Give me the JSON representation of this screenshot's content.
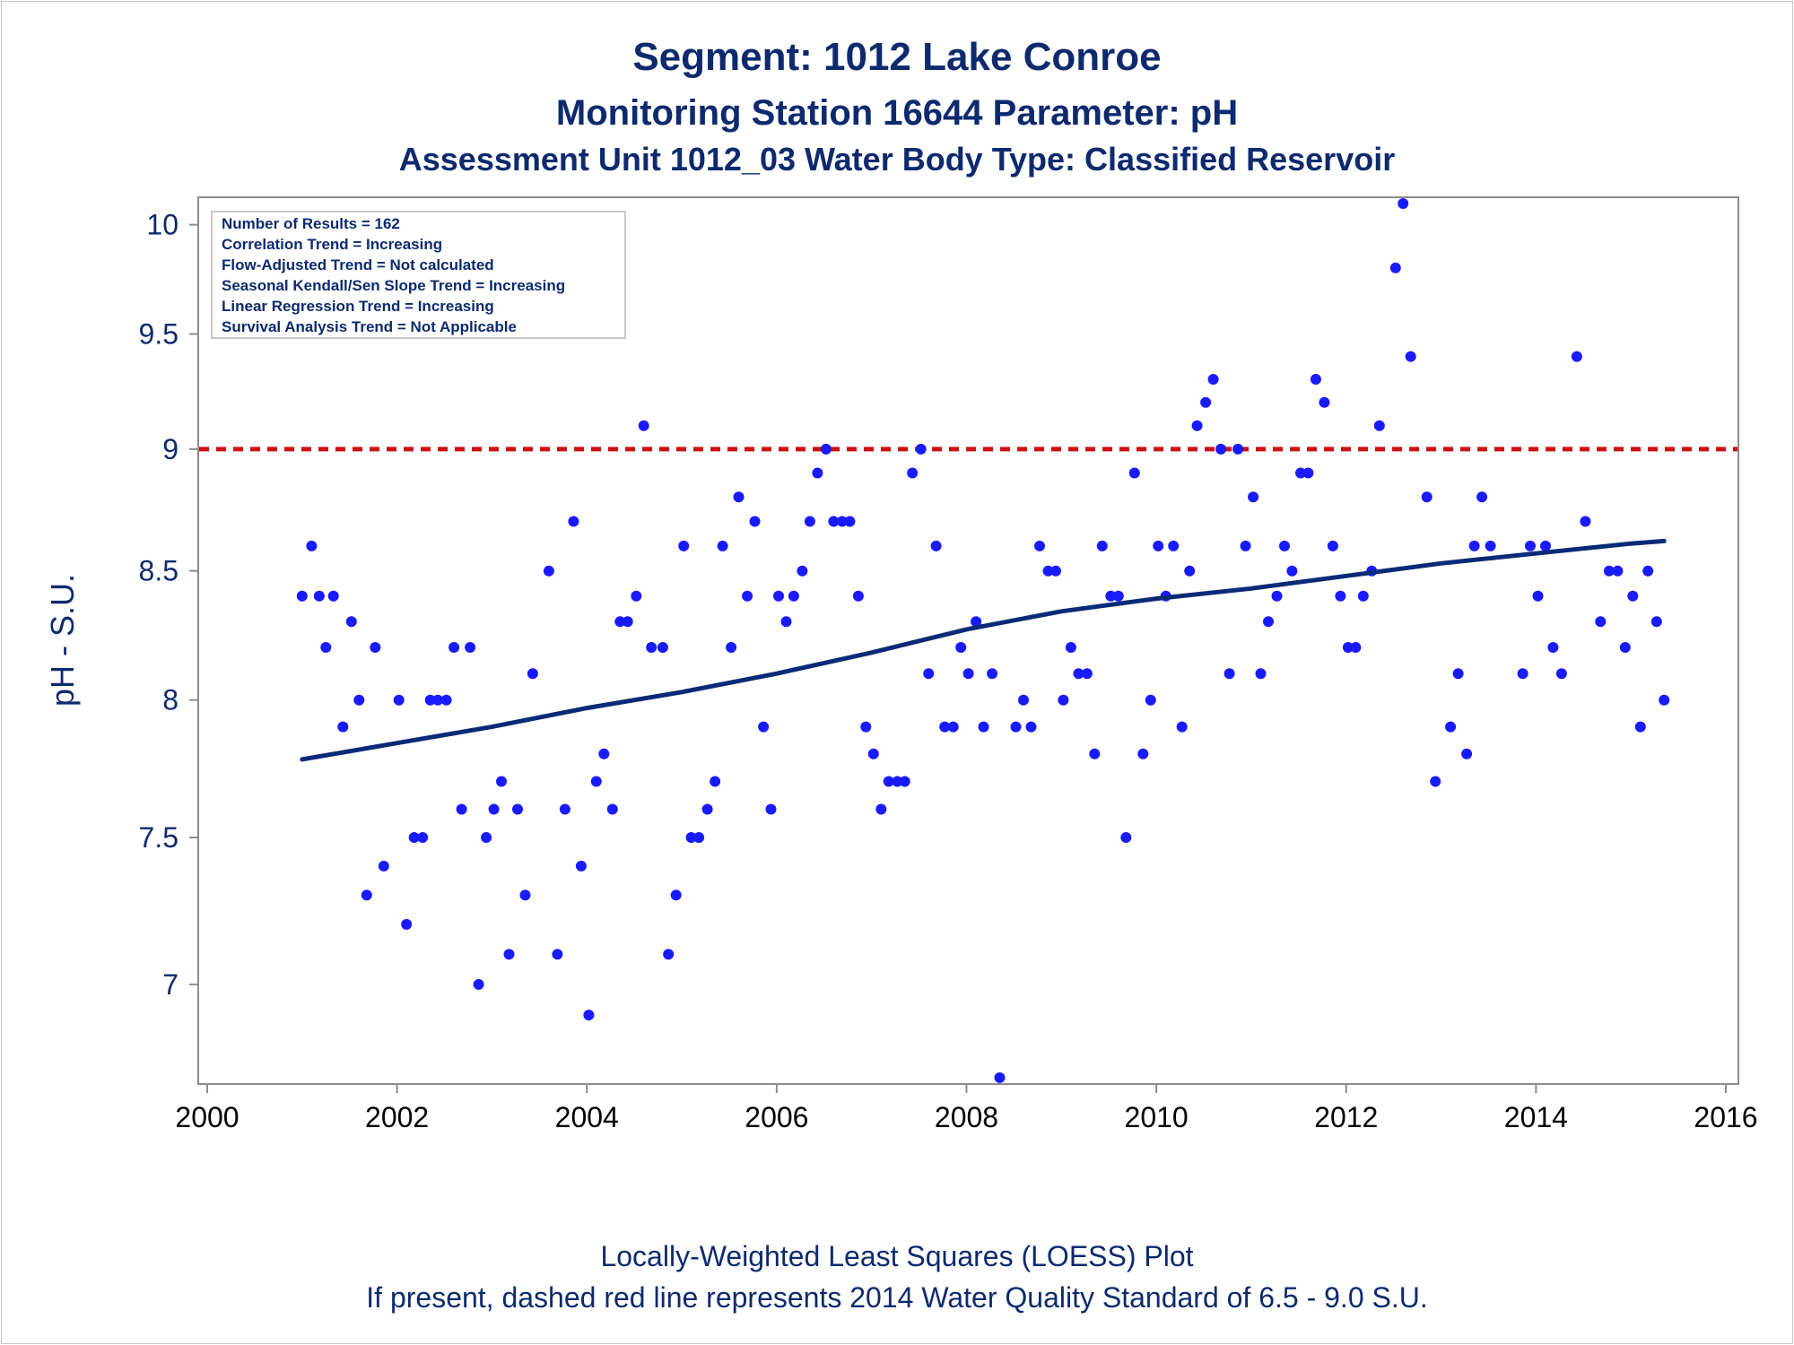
{
  "colors": {
    "title": "#0e2a6e",
    "axis_label": "#0e2a6e",
    "y_ticks": "#0e2a6e",
    "x_ticks": "#000000",
    "points": "#1a1aff",
    "trend": "#0a2a78",
    "standard_line": "#cc1111",
    "frame": "#8c8c8c"
  },
  "chart_data": {
    "type": "scatter",
    "title": "Segment: 1012  Lake Conroe",
    "subtitle": "Monitoring Station 16644 Parameter: pH",
    "subtitle2": "Assessment Unit 1012_03   Water Body Type: Classified Reservoir",
    "xlabel": "",
    "ylabel": "pH - S.U.",
    "x_axis_type": "date",
    "xlim": [
      2000,
      2016
    ],
    "ylim": [
      6.68,
      10.13
    ],
    "y_scale": "log",
    "x_ticks": [
      "2000",
      "2002",
      "2004",
      "2006",
      "2008",
      "2010",
      "2012",
      "2014",
      "2016"
    ],
    "x_tick_values": [
      2000,
      2002,
      2004,
      2006,
      2008,
      2010,
      2012,
      2014,
      2016
    ],
    "y_ticks": [
      "7",
      "7.5",
      "8",
      "8.5",
      "9",
      "9.5",
      "10"
    ],
    "y_tick_values": [
      7,
      7.5,
      8,
      8.5,
      9,
      9.5,
      10
    ],
    "grid": false,
    "legend_placement": "top-left",
    "stats": [
      "Number of Results = 162",
      "Correlation Trend = Increasing",
      "Flow-Adjusted Trend = Not calculated",
      "Seasonal Kendall/Sen Slope Trend = Increasing",
      "Linear Regression Trend = Increasing",
      "Survival Analysis Trend = Not Applicable"
    ],
    "reference_line": {
      "y": 9.0,
      "style": "dashed"
    },
    "footnote1": "Locally-Weighted Least Squares (LOESS) Plot",
    "footnote2": "If present, dashed red line represents 2014 Water Quality Standard of 6.5 - 9.0 S.U.",
    "series": [
      {
        "type": "scatter",
        "points": [
          [
            2001.0,
            8.4
          ],
          [
            2001.1,
            8.6
          ],
          [
            2001.18,
            8.4
          ],
          [
            2001.25,
            8.2
          ],
          [
            2001.33,
            8.4
          ],
          [
            2001.43,
            7.9
          ],
          [
            2001.52,
            8.3
          ],
          [
            2001.6,
            8.0
          ],
          [
            2001.68,
            7.3
          ],
          [
            2001.77,
            8.2
          ],
          [
            2001.86,
            7.4
          ],
          [
            2002.02,
            8.0
          ],
          [
            2002.1,
            7.2
          ],
          [
            2002.18,
            7.5
          ],
          [
            2002.27,
            7.5
          ],
          [
            2002.35,
            8.0
          ],
          [
            2002.43,
            8.0
          ],
          [
            2002.52,
            8.0
          ],
          [
            2002.6,
            8.2
          ],
          [
            2002.68,
            7.6
          ],
          [
            2002.77,
            8.2
          ],
          [
            2002.86,
            7.0
          ],
          [
            2002.94,
            7.5
          ],
          [
            2003.02,
            7.6
          ],
          [
            2003.1,
            7.7
          ],
          [
            2003.18,
            7.1
          ],
          [
            2003.27,
            7.6
          ],
          [
            2003.35,
            7.3
          ],
          [
            2003.43,
            8.1
          ],
          [
            2003.6,
            8.5
          ],
          [
            2003.69,
            7.1
          ],
          [
            2003.77,
            7.6
          ],
          [
            2003.86,
            8.7
          ],
          [
            2003.94,
            7.4
          ],
          [
            2004.02,
            6.9
          ],
          [
            2004.1,
            7.7
          ],
          [
            2004.18,
            7.8
          ],
          [
            2004.27,
            7.6
          ],
          [
            2004.35,
            8.3
          ],
          [
            2004.43,
            8.3
          ],
          [
            2004.52,
            8.4
          ],
          [
            2004.6,
            9.1
          ],
          [
            2004.68,
            8.2
          ],
          [
            2004.8,
            8.2
          ],
          [
            2004.86,
            7.1
          ],
          [
            2004.94,
            7.3
          ],
          [
            2005.02,
            8.6
          ],
          [
            2005.1,
            7.5
          ],
          [
            2005.18,
            7.5
          ],
          [
            2005.27,
            7.6
          ],
          [
            2005.35,
            7.7
          ],
          [
            2005.43,
            8.6
          ],
          [
            2005.52,
            8.2
          ],
          [
            2005.6,
            8.8
          ],
          [
            2005.69,
            8.4
          ],
          [
            2005.77,
            8.7
          ],
          [
            2005.86,
            7.9
          ],
          [
            2005.94,
            7.6
          ],
          [
            2006.02,
            8.4
          ],
          [
            2006.1,
            8.3
          ],
          [
            2006.18,
            8.4
          ],
          [
            2006.27,
            8.5
          ],
          [
            2006.35,
            8.7
          ],
          [
            2006.43,
            8.9
          ],
          [
            2006.52,
            9.0
          ],
          [
            2006.6,
            8.7
          ],
          [
            2006.69,
            8.7
          ],
          [
            2006.77,
            8.7
          ],
          [
            2006.86,
            8.4
          ],
          [
            2006.94,
            7.9
          ],
          [
            2007.02,
            7.8
          ],
          [
            2007.1,
            7.6
          ],
          [
            2007.18,
            7.7
          ],
          [
            2007.27,
            7.7
          ],
          [
            2007.35,
            7.7
          ],
          [
            2007.43,
            8.9
          ],
          [
            2007.52,
            9.0
          ],
          [
            2007.6,
            8.1
          ],
          [
            2007.68,
            8.6
          ],
          [
            2007.77,
            7.9
          ],
          [
            2007.86,
            7.9
          ],
          [
            2007.94,
            8.2
          ],
          [
            2008.02,
            8.1
          ],
          [
            2008.1,
            8.3
          ],
          [
            2008.18,
            7.9
          ],
          [
            2008.27,
            8.1
          ],
          [
            2008.35,
            6.7
          ],
          [
            2008.52,
            7.9
          ],
          [
            2008.6,
            8.0
          ],
          [
            2008.68,
            7.9
          ],
          [
            2008.77,
            8.6
          ],
          [
            2008.86,
            8.5
          ],
          [
            2008.94,
            8.5
          ],
          [
            2009.02,
            8.0
          ],
          [
            2009.1,
            8.2
          ],
          [
            2009.18,
            8.1
          ],
          [
            2009.27,
            8.1
          ],
          [
            2009.35,
            7.8
          ],
          [
            2009.43,
            8.6
          ],
          [
            2009.52,
            8.4
          ],
          [
            2009.6,
            8.4
          ],
          [
            2009.68,
            7.5
          ],
          [
            2009.77,
            8.9
          ],
          [
            2009.86,
            7.8
          ],
          [
            2009.94,
            8.0
          ],
          [
            2010.02,
            8.6
          ],
          [
            2010.1,
            8.4
          ],
          [
            2010.18,
            8.6
          ],
          [
            2010.27,
            7.9
          ],
          [
            2010.35,
            8.5
          ],
          [
            2010.43,
            9.1
          ],
          [
            2010.52,
            9.2
          ],
          [
            2010.6,
            9.3
          ],
          [
            2010.68,
            9.0
          ],
          [
            2010.77,
            8.1
          ],
          [
            2010.86,
            9.0
          ],
          [
            2010.94,
            8.6
          ],
          [
            2011.02,
            8.8
          ],
          [
            2011.1,
            8.1
          ],
          [
            2011.18,
            8.3
          ],
          [
            2011.27,
            8.4
          ],
          [
            2011.35,
            8.6
          ],
          [
            2011.43,
            8.5
          ],
          [
            2011.52,
            8.9
          ],
          [
            2011.6,
            8.9
          ],
          [
            2011.68,
            9.3
          ],
          [
            2011.77,
            9.2
          ],
          [
            2011.86,
            8.6
          ],
          [
            2011.94,
            8.4
          ],
          [
            2012.02,
            8.2
          ],
          [
            2012.1,
            8.2
          ],
          [
            2012.18,
            8.4
          ],
          [
            2012.27,
            8.5
          ],
          [
            2012.35,
            9.1
          ],
          [
            2012.52,
            9.8
          ],
          [
            2012.6,
            10.1
          ],
          [
            2012.68,
            9.4
          ],
          [
            2012.85,
            8.8
          ],
          [
            2012.94,
            7.7
          ],
          [
            2013.1,
            7.9
          ],
          [
            2013.18,
            8.1
          ],
          [
            2013.27,
            7.8
          ],
          [
            2013.35,
            8.6
          ],
          [
            2013.43,
            8.8
          ],
          [
            2013.52,
            8.6
          ],
          [
            2013.86,
            8.1
          ],
          [
            2013.94,
            8.6
          ],
          [
            2014.02,
            8.4
          ],
          [
            2014.1,
            8.6
          ],
          [
            2014.18,
            8.2
          ],
          [
            2014.27,
            8.1
          ],
          [
            2014.43,
            9.4
          ],
          [
            2014.52,
            8.7
          ],
          [
            2014.68,
            8.3
          ],
          [
            2014.77,
            8.5
          ],
          [
            2014.86,
            8.5
          ],
          [
            2014.94,
            8.2
          ],
          [
            2015.02,
            8.4
          ],
          [
            2015.1,
            7.9
          ],
          [
            2015.18,
            8.5
          ],
          [
            2015.27,
            8.3
          ],
          [
            2015.35,
            8.0
          ]
        ]
      },
      {
        "type": "line",
        "points": [
          [
            2001.0,
            7.78
          ],
          [
            2002.0,
            7.84
          ],
          [
            2003.0,
            7.9
          ],
          [
            2004.0,
            7.97
          ],
          [
            2005.0,
            8.03
          ],
          [
            2006.0,
            8.1
          ],
          [
            2007.0,
            8.18
          ],
          [
            2008.0,
            8.27
          ],
          [
            2009.0,
            8.34
          ],
          [
            2010.0,
            8.39
          ],
          [
            2011.0,
            8.43
          ],
          [
            2012.0,
            8.48
          ],
          [
            2013.0,
            8.53
          ],
          [
            2014.0,
            8.57
          ],
          [
            2015.0,
            8.61
          ],
          [
            2015.35,
            8.62
          ]
        ]
      }
    ]
  }
}
